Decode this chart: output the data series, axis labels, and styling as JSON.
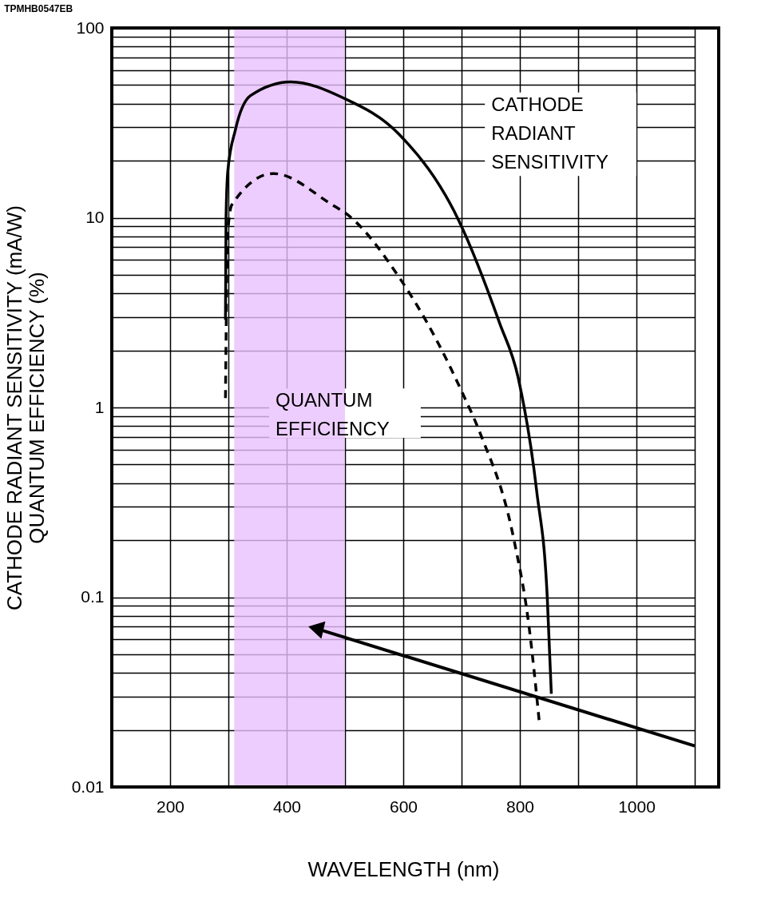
{
  "chart_data": {
    "type": "line",
    "xlabel": "WAVELENGTH (nm)",
    "ylabel": "CATHODE RADIANT SENSITIVITY (mA/W)\nQUANTUM EFFICIENCY (%)",
    "log": "y",
    "xlim": [
      100,
      1100
    ],
    "xticks": [
      {
        "value": 100,
        "label": null
      },
      200,
      {
        "value": 300,
        "label": null
      },
      400,
      {
        "value": 500,
        "label": null
      },
      600,
      {
        "value": 700,
        "label": null
      },
      800,
      {
        "value": 900,
        "label": null
      },
      1000,
      {
        "value": 1100,
        "label": null
      }
    ],
    "ylim": [
      0.01,
      100
    ],
    "yticks": [
      0.01,
      {
        "value": 0.02,
        "label": null
      },
      {
        "value": 0.03,
        "label": null
      },
      {
        "value": 0.04,
        "label": null
      },
      {
        "value": 0.05,
        "label": null
      },
      {
        "value": 0.06,
        "label": null
      },
      {
        "value": 0.07,
        "label": null
      },
      {
        "value": 0.08,
        "label": null
      },
      {
        "value": 0.09,
        "label": null
      },
      0.1,
      {
        "value": 0.2,
        "label": null
      },
      {
        "value": 0.3,
        "label": null
      },
      {
        "value": 0.4,
        "label": null
      },
      {
        "value": 0.5,
        "label": null
      },
      {
        "value": 0.6,
        "label": null
      },
      {
        "value": 0.7,
        "label": null
      },
      {
        "value": 0.8,
        "label": null
      },
      {
        "value": 0.9,
        "label": null
      },
      1,
      {
        "value": 2,
        "label": null
      },
      {
        "value": 3,
        "label": null
      },
      {
        "value": 4,
        "label": null
      },
      {
        "value": 5,
        "label": null
      },
      {
        "value": 6,
        "label": null
      },
      {
        "value": 7,
        "label": null
      },
      {
        "value": 8,
        "label": null
      },
      {
        "value": 9,
        "label": null
      },
      10,
      {
        "value": 20,
        "label": null
      },
      {
        "value": 30,
        "label": null
      },
      {
        "value": 40,
        "label": null
      },
      {
        "value": 50,
        "label": null
      },
      {
        "value": 60,
        "label": null
      },
      {
        "value": 70,
        "label": null
      },
      {
        "value": 80,
        "label": null
      },
      {
        "value": 90,
        "label": null
      },
      100
    ],
    "grid": true,
    "series": [
      {
        "color": "#000000",
        "line_style": "solid",
        "x": [
          295,
          296,
          299,
          312,
          338,
          407,
          497,
          592,
          695,
          765,
          797,
          829,
          847,
          854
        ],
        "values": [
          2.9,
          10,
          17.6,
          29,
          44,
          52,
          42.8,
          27.7,
          9.7,
          2.8,
          1.44,
          0.36,
          0.1,
          0.031
        ]
      },
      {
        "color": "#000000",
        "line_style": "dashed",
        "x": [
          295,
          299,
          306,
          377,
          478,
          504,
          592,
          656,
          700,
          732,
          790,
          815,
          834
        ],
        "values": [
          1.12,
          8.4,
          11.7,
          17.1,
          11.7,
          10.4,
          4.9,
          2.3,
          1.22,
          0.73,
          0.2,
          0.073,
          0.021
        ]
      }
    ],
    "bands": [
      {
        "axis": "x",
        "from": 310,
        "to": 500,
        "color": "#e8c0fc"
      }
    ],
    "annotations": [
      "TPMHB0547EB",
      "CATHODE\nRADIANT\nSENSITIVITY",
      "QUANTUM\nEFFICIENCY"
    ]
  }
}
